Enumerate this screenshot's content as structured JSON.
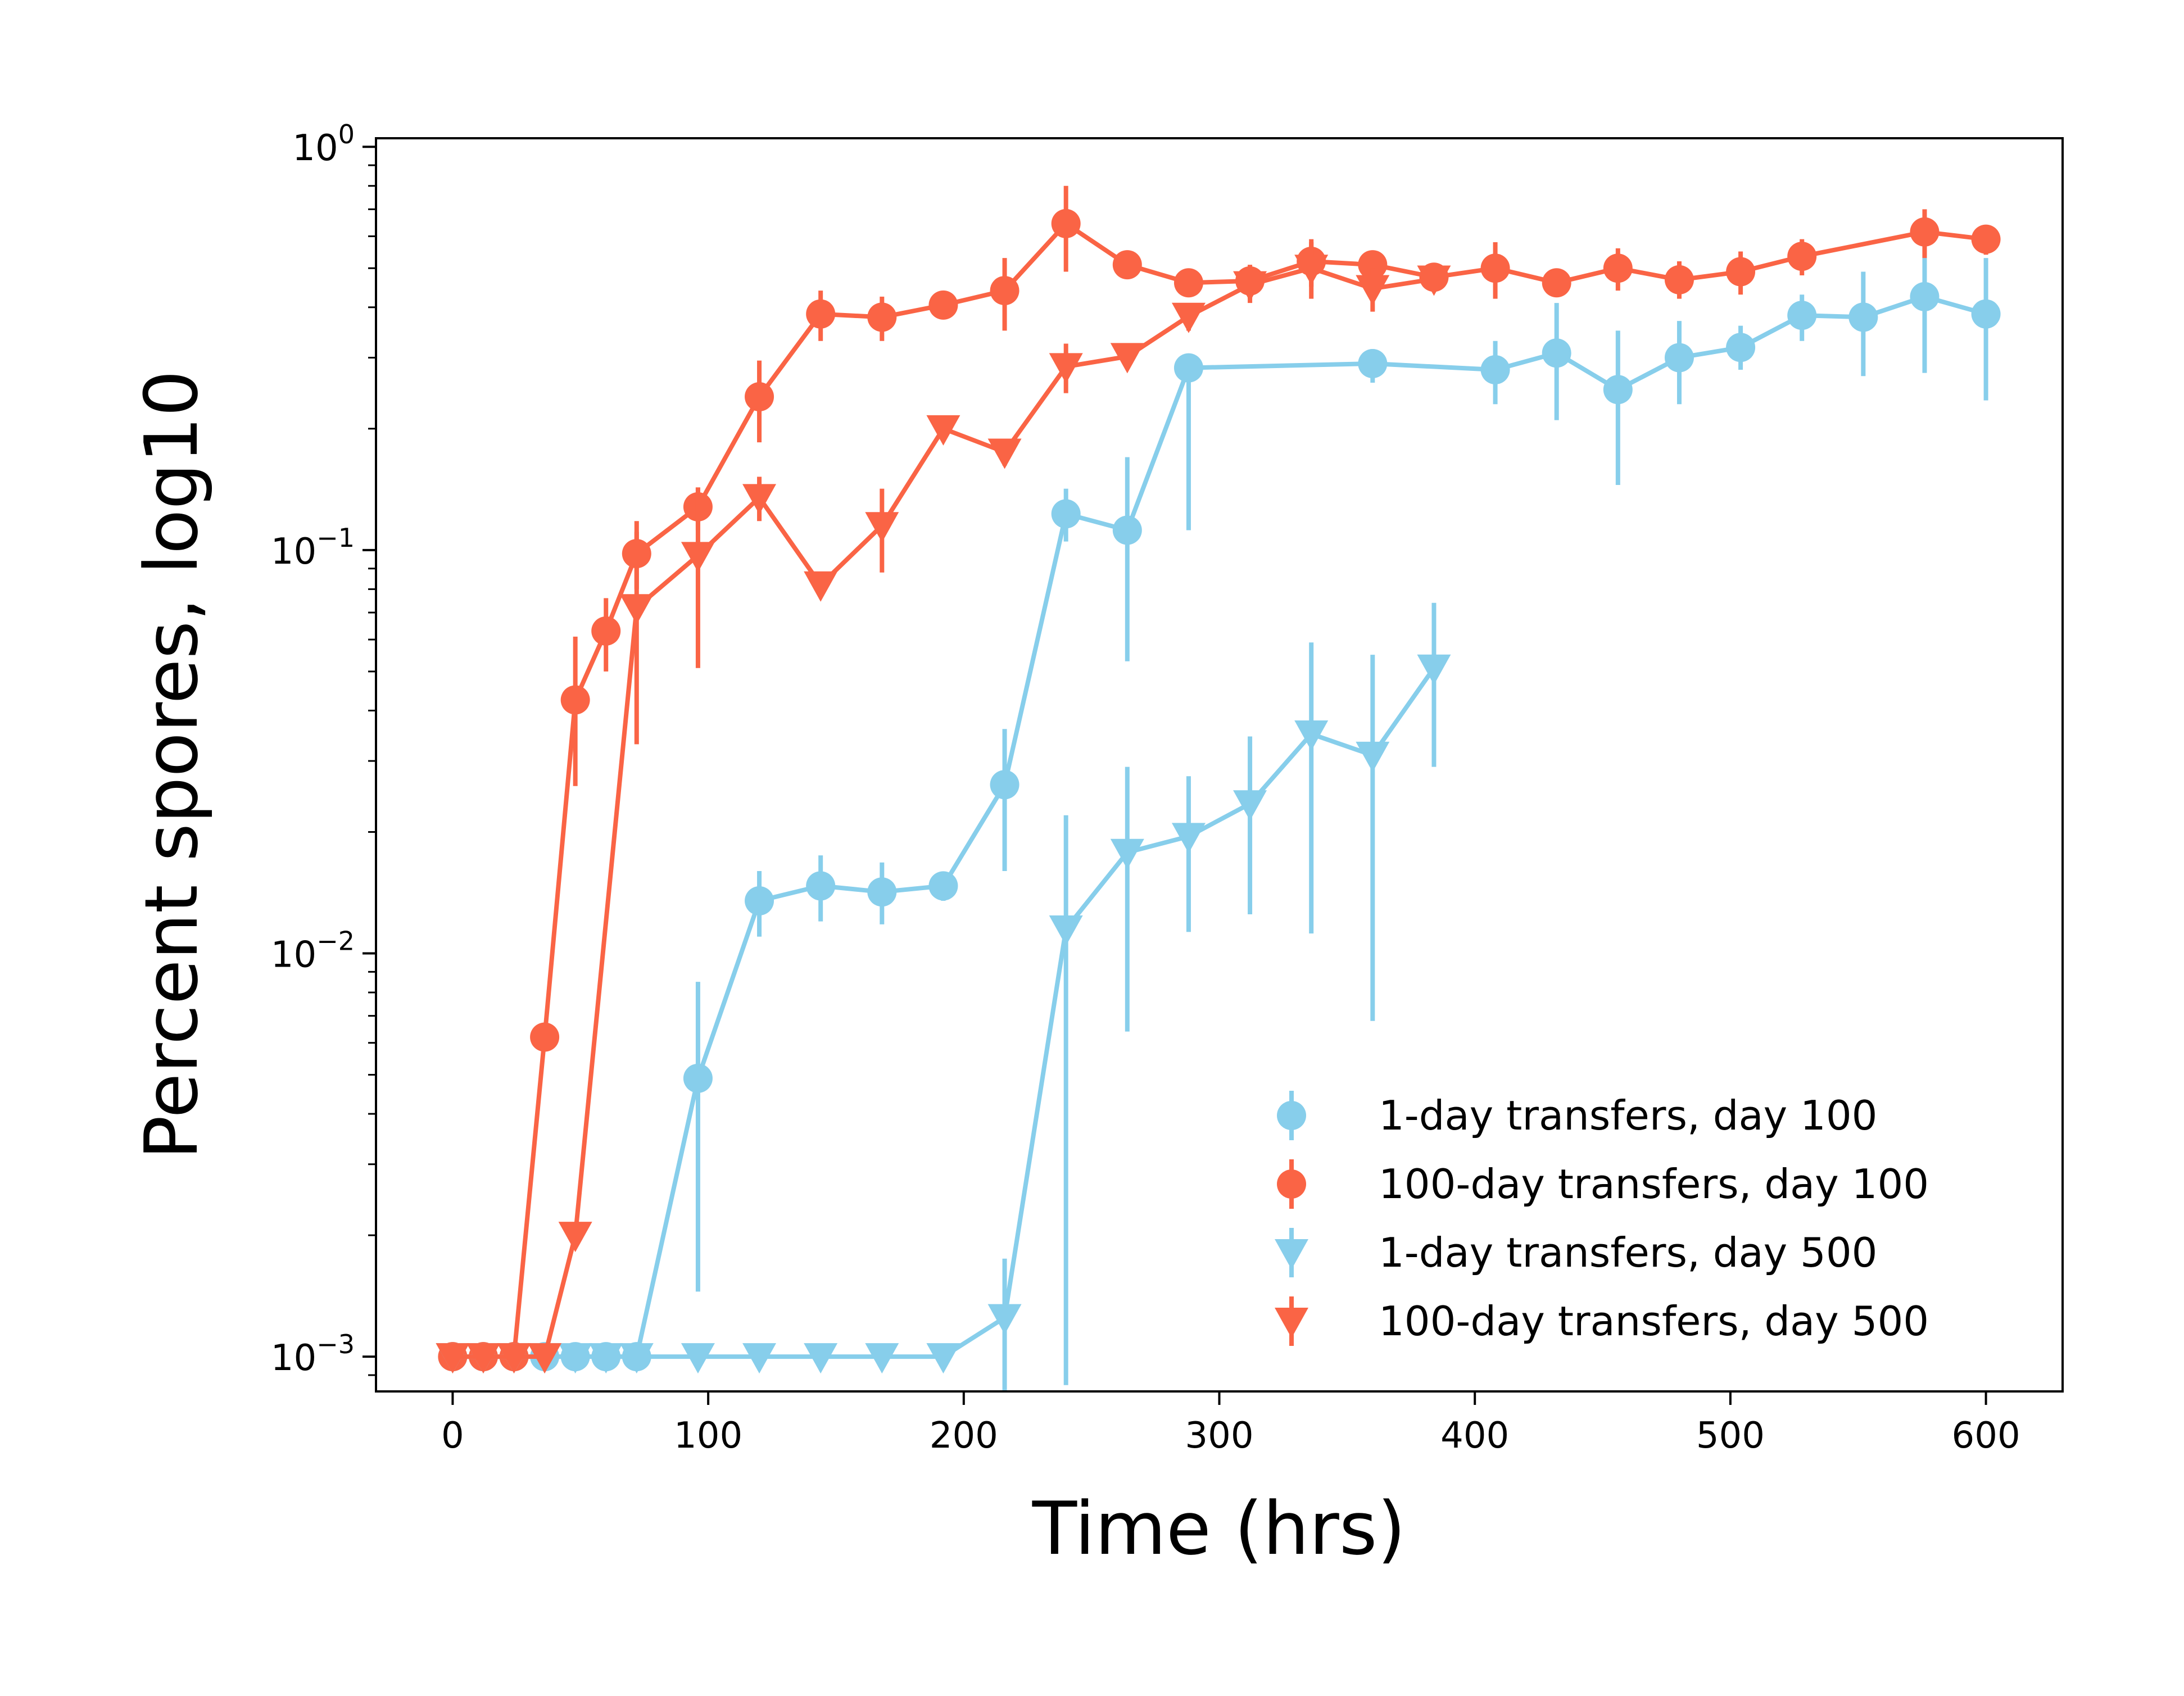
{
  "chart_data": {
    "type": "line",
    "title": "",
    "xlabel": "Time (hrs)",
    "ylabel": "Percent spores, log10",
    "xlim": [
      -30,
      630
    ],
    "ylim": [
      0.00082,
      1.05
    ],
    "yscale": "log",
    "xticks": [
      0,
      100,
      200,
      300,
      400,
      500,
      600
    ],
    "yticks": [
      {
        "value": 0.001,
        "base": "10",
        "exp": "−3"
      },
      {
        "value": 0.01,
        "base": "10",
        "exp": "−2"
      },
      {
        "value": 0.1,
        "base": "10",
        "exp": "−1"
      },
      {
        "value": 1,
        "base": "10",
        "exp": "0"
      }
    ],
    "grid": false,
    "legend_position": "lower-right",
    "series": [
      {
        "name": "1-day transfers, day 100",
        "color": "#87ceeb",
        "marker": "circle",
        "points": [
          {
            "x": 0,
            "y": 0.001
          },
          {
            "x": 12,
            "y": 0.001
          },
          {
            "x": 24,
            "y": 0.001
          },
          {
            "x": 36,
            "y": 0.001
          },
          {
            "x": 48,
            "y": 0.001
          },
          {
            "x": 60,
            "y": 0.001
          },
          {
            "x": 72,
            "y": 0.001
          },
          {
            "x": 96,
            "y": 0.0049,
            "lo": 0.00145,
            "hi": 0.0085
          },
          {
            "x": 120,
            "y": 0.0135,
            "lo": 0.011,
            "hi": 0.016
          },
          {
            "x": 144,
            "y": 0.0147,
            "lo": 0.012,
            "hi": 0.0175
          },
          {
            "x": 168,
            "y": 0.0142,
            "lo": 0.0118,
            "hi": 0.0168
          },
          {
            "x": 192,
            "y": 0.0147,
            "lo": 0.0135,
            "hi": 0.0158
          },
          {
            "x": 216,
            "y": 0.0262,
            "lo": 0.016,
            "hi": 0.036
          },
          {
            "x": 240,
            "y": 0.123,
            "lo": 0.105,
            "hi": 0.142
          },
          {
            "x": 264,
            "y": 0.112,
            "lo": 0.053,
            "hi": 0.17
          },
          {
            "x": 288,
            "y": 0.283,
            "lo": 0.112,
            "hi": 0.29
          },
          {
            "x": 360,
            "y": 0.29,
            "lo": 0.26,
            "hi": 0.315
          },
          {
            "x": 408,
            "y": 0.28,
            "lo": 0.23,
            "hi": 0.33
          },
          {
            "x": 432,
            "y": 0.308,
            "lo": 0.21,
            "hi": 0.41
          },
          {
            "x": 456,
            "y": 0.25,
            "lo": 0.145,
            "hi": 0.35
          },
          {
            "x": 480,
            "y": 0.3,
            "lo": 0.23,
            "hi": 0.37
          },
          {
            "x": 504,
            "y": 0.318,
            "lo": 0.28,
            "hi": 0.36
          },
          {
            "x": 528,
            "y": 0.382,
            "lo": 0.33,
            "hi": 0.43
          },
          {
            "x": 552,
            "y": 0.378,
            "lo": 0.27,
            "hi": 0.49
          },
          {
            "x": 576,
            "y": 0.425,
            "lo": 0.275,
            "hi": 0.57
          },
          {
            "x": 600,
            "y": 0.385,
            "lo": 0.235,
            "hi": 0.53
          }
        ]
      },
      {
        "name": "100-day transfers, day 100",
        "color": "#fa6445",
        "marker": "circle",
        "points": [
          {
            "x": 0,
            "y": 0.001
          },
          {
            "x": 12,
            "y": 0.001
          },
          {
            "x": 24,
            "y": 0.001
          },
          {
            "x": 36,
            "y": 0.0062
          },
          {
            "x": 48,
            "y": 0.0425,
            "lo": 0.026,
            "hi": 0.061
          },
          {
            "x": 60,
            "y": 0.063,
            "lo": 0.05,
            "hi": 0.076
          },
          {
            "x": 72,
            "y": 0.098,
            "lo": 0.08,
            "hi": 0.118
          },
          {
            "x": 96,
            "y": 0.128,
            "lo": 0.112,
            "hi": 0.143
          },
          {
            "x": 120,
            "y": 0.24,
            "lo": 0.185,
            "hi": 0.295
          },
          {
            "x": 144,
            "y": 0.385,
            "lo": 0.33,
            "hi": 0.44
          },
          {
            "x": 168,
            "y": 0.378,
            "lo": 0.33,
            "hi": 0.425
          },
          {
            "x": 192,
            "y": 0.405,
            "lo": 0.385,
            "hi": 0.425
          },
          {
            "x": 216,
            "y": 0.44,
            "lo": 0.35,
            "hi": 0.53
          },
          {
            "x": 240,
            "y": 0.645,
            "lo": 0.49,
            "hi": 0.8
          },
          {
            "x": 264,
            "y": 0.51,
            "lo": 0.49,
            "hi": 0.53
          },
          {
            "x": 288,
            "y": 0.46,
            "lo": 0.44,
            "hi": 0.48
          },
          {
            "x": 312,
            "y": 0.465,
            "lo": 0.42,
            "hi": 0.51
          },
          {
            "x": 336,
            "y": 0.52,
            "lo": 0.45,
            "hi": 0.59
          },
          {
            "x": 360,
            "y": 0.51,
            "lo": 0.47,
            "hi": 0.55
          },
          {
            "x": 384,
            "y": 0.475,
            "lo": 0.445,
            "hi": 0.505
          },
          {
            "x": 408,
            "y": 0.5,
            "lo": 0.42,
            "hi": 0.58
          },
          {
            "x": 432,
            "y": 0.46,
            "lo": 0.44,
            "hi": 0.48
          },
          {
            "x": 456,
            "y": 0.5,
            "lo": 0.44,
            "hi": 0.56
          },
          {
            "x": 480,
            "y": 0.468,
            "lo": 0.42,
            "hi": 0.52
          },
          {
            "x": 504,
            "y": 0.49,
            "lo": 0.43,
            "hi": 0.55
          },
          {
            "x": 528,
            "y": 0.535,
            "lo": 0.48,
            "hi": 0.59
          },
          {
            "x": 576,
            "y": 0.615,
            "lo": 0.53,
            "hi": 0.7
          },
          {
            "x": 600,
            "y": 0.59,
            "lo": 0.54,
            "hi": 0.64
          }
        ]
      },
      {
        "name": "1-day transfers, day 500",
        "color": "#87ceeb",
        "marker": "triangle-down",
        "points": [
          {
            "x": 0,
            "y": 0.001
          },
          {
            "x": 12,
            "y": 0.001
          },
          {
            "x": 24,
            "y": 0.001
          },
          {
            "x": 36,
            "y": 0.001
          },
          {
            "x": 48,
            "y": 0.001
          },
          {
            "x": 60,
            "y": 0.001
          },
          {
            "x": 72,
            "y": 0.001
          },
          {
            "x": 96,
            "y": 0.001
          },
          {
            "x": 120,
            "y": 0.001
          },
          {
            "x": 144,
            "y": 0.001
          },
          {
            "x": 168,
            "y": 0.001
          },
          {
            "x": 192,
            "y": 0.001
          },
          {
            "x": 216,
            "y": 0.00125,
            "lo": 0.00082,
            "hi": 0.00175
          },
          {
            "x": 240,
            "y": 0.0115,
            "lo": 0.00085,
            "hi": 0.022
          },
          {
            "x": 264,
            "y": 0.0178,
            "lo": 0.0064,
            "hi": 0.029
          },
          {
            "x": 288,
            "y": 0.0195,
            "lo": 0.0113,
            "hi": 0.0275
          },
          {
            "x": 312,
            "y": 0.0235,
            "lo": 0.0125,
            "hi": 0.0345
          },
          {
            "x": 336,
            "y": 0.035,
            "lo": 0.0112,
            "hi": 0.059
          },
          {
            "x": 360,
            "y": 0.031,
            "lo": 0.0068,
            "hi": 0.055
          },
          {
            "x": 384,
            "y": 0.051,
            "lo": 0.029,
            "hi": 0.074
          }
        ]
      },
      {
        "name": "100-day transfers, day 500",
        "color": "#fa6445",
        "marker": "triangle-down",
        "points": [
          {
            "x": 0,
            "y": 0.001
          },
          {
            "x": 12,
            "y": 0.001
          },
          {
            "x": 24,
            "y": 0.001
          },
          {
            "x": 36,
            "y": 0.001
          },
          {
            "x": 48,
            "y": 0.002
          },
          {
            "x": 72,
            "y": 0.072,
            "lo": 0.033,
            "hi": 0.111
          },
          {
            "x": 96,
            "y": 0.097,
            "lo": 0.051,
            "hi": 0.143
          },
          {
            "x": 120,
            "y": 0.135,
            "lo": 0.118,
            "hi": 0.152
          },
          {
            "x": 144,
            "y": 0.082
          },
          {
            "x": 168,
            "y": 0.115,
            "lo": 0.088,
            "hi": 0.142
          },
          {
            "x": 192,
            "y": 0.2,
            "lo": 0.19,
            "hi": 0.21
          },
          {
            "x": 216,
            "y": 0.175,
            "lo": 0.162,
            "hi": 0.188
          },
          {
            "x": 240,
            "y": 0.285,
            "lo": 0.245,
            "hi": 0.325
          },
          {
            "x": 264,
            "y": 0.302,
            "lo": 0.29,
            "hi": 0.315
          },
          {
            "x": 288,
            "y": 0.38,
            "lo": 0.35,
            "hi": 0.41
          },
          {
            "x": 312,
            "y": 0.455,
            "lo": 0.41,
            "hi": 0.5
          },
          {
            "x": 336,
            "y": 0.5,
            "lo": 0.42,
            "hi": 0.58
          },
          {
            "x": 360,
            "y": 0.445,
            "lo": 0.39,
            "hi": 0.5
          },
          {
            "x": 384,
            "y": 0.47,
            "lo": 0.44,
            "hi": 0.5
          }
        ]
      }
    ]
  }
}
